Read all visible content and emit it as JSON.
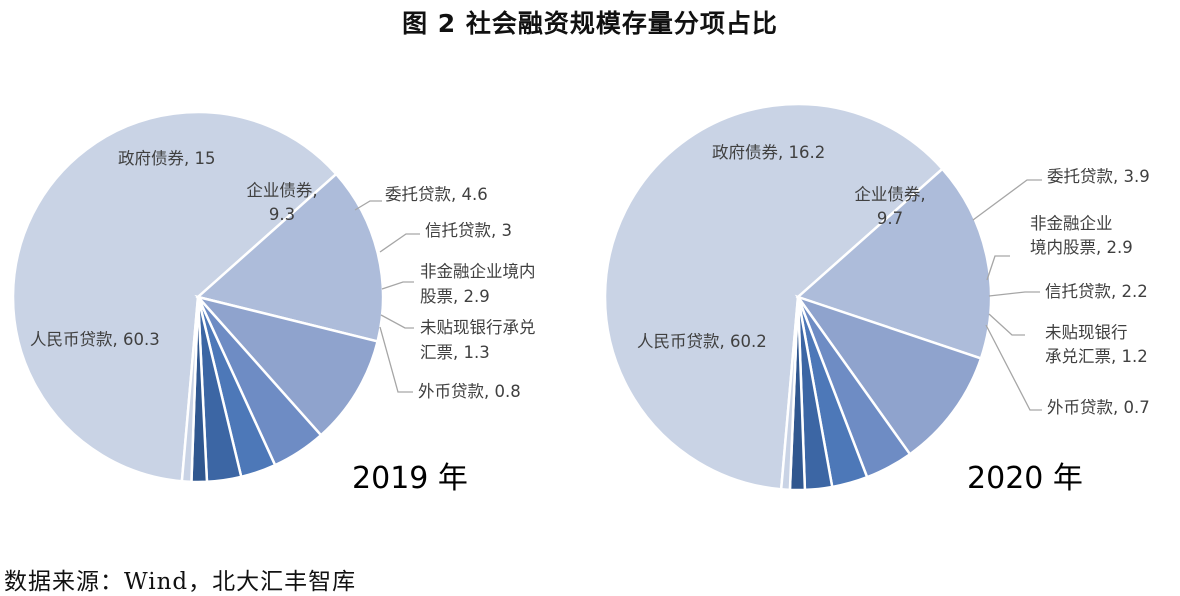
{
  "chart_title": "图 2 社会融资规模存量分项占比",
  "source_note": "数据来源：Wind，北大汇丰智库",
  "colors": [
    "#c9d3e5",
    "#adbcda",
    "#8fa3cd",
    "#6e8cc4",
    "#4d78b8",
    "#3c66a4",
    "#30578f"
  ],
  "chart_data": [
    {
      "type": "pie",
      "year_label": "2019 年",
      "categories": [
        "人民币贷款",
        "政府债券",
        "企业债券",
        "委托贷款",
        "信托贷款",
        "非金融企业境内股票",
        "未贴现银行承兑汇票",
        "外币贷款"
      ],
      "values": [
        60.3,
        15,
        9.3,
        4.6,
        3,
        2.9,
        1.3,
        0.8
      ],
      "labels": [
        [
          "人民币贷款, 60.3"
        ],
        [
          "政府债券, 15"
        ],
        [
          "企业债券,",
          "9.3"
        ],
        [
          "委托贷款, 4.6"
        ],
        [
          "信托贷款, 3"
        ],
        [
          "非金融企业境内",
          "股票, 2.9"
        ],
        [
          "未贴现银行承兑",
          "汇票, 1.3"
        ],
        [
          "外币贷款, 0.8"
        ]
      ]
    },
    {
      "type": "pie",
      "year_label": "2020 年",
      "categories": [
        "人民币贷款",
        "政府债券",
        "企业债券",
        "委托贷款",
        "非金融企业境内股票",
        "信托贷款",
        "未贴现银行承兑汇票",
        "外币贷款"
      ],
      "values": [
        60.2,
        16.2,
        9.7,
        3.9,
        2.9,
        2.2,
        1.2,
        0.7
      ],
      "labels": [
        [
          "人民币贷款, 60.2"
        ],
        [
          "政府债券, 16.2"
        ],
        [
          "企业债券,",
          "9.7"
        ],
        [
          "委托贷款, 3.9"
        ],
        [
          "非金融企业",
          "境内股票, 2.9"
        ],
        [
          "信托贷款, 2.2"
        ],
        [
          "未贴现银行",
          "承兑汇票, 1.2"
        ],
        [
          "外币贷款, 0.7"
        ]
      ]
    }
  ]
}
